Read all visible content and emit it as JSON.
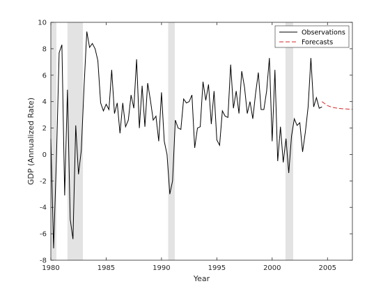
{
  "chart_data": {
    "type": "line",
    "title": "",
    "xlabel": "Year",
    "ylabel": "GDP (Annualized Rate)",
    "xlim": [
      1980,
      2007.25
    ],
    "ylim": [
      -8,
      10
    ],
    "xticks": [
      1980,
      1985,
      1990,
      1995,
      2000,
      2005
    ],
    "yticks": [
      -8,
      -6,
      -4,
      -2,
      0,
      2,
      4,
      6,
      8,
      10
    ],
    "grid": false,
    "legend_position": "top-right",
    "recessions": [
      [
        1980.0,
        1980.5
      ],
      [
        1981.5,
        1982.9
      ],
      [
        1990.6,
        1991.2
      ],
      [
        2001.2,
        2001.9
      ]
    ],
    "series": [
      {
        "name": "Observations",
        "style": "solid",
        "color": "#000000",
        "x": [
          1980.0,
          1980.25,
          1980.5,
          1980.75,
          1981.0,
          1981.25,
          1981.5,
          1981.75,
          1982.0,
          1982.25,
          1982.5,
          1982.75,
          1983.0,
          1983.25,
          1983.5,
          1983.75,
          1984.0,
          1984.25,
          1984.5,
          1984.75,
          1985.0,
          1985.25,
          1985.5,
          1985.75,
          1986.0,
          1986.25,
          1986.5,
          1986.75,
          1987.0,
          1987.25,
          1987.5,
          1987.75,
          1988.0,
          1988.25,
          1988.5,
          1988.75,
          1989.0,
          1989.25,
          1989.5,
          1989.75,
          1990.0,
          1990.25,
          1990.5,
          1990.75,
          1991.0,
          1991.25,
          1991.5,
          1991.75,
          1992.0,
          1992.25,
          1992.5,
          1992.75,
          1993.0,
          1993.25,
          1993.5,
          1993.75,
          1994.0,
          1994.25,
          1994.5,
          1994.75,
          1995.0,
          1995.25,
          1995.5,
          1995.75,
          1996.0,
          1996.25,
          1996.5,
          1996.75,
          1997.0,
          1997.25,
          1997.5,
          1997.75,
          1998.0,
          1998.25,
          1998.5,
          1998.75,
          1999.0,
          1999.25,
          1999.5,
          1999.75,
          2000.0,
          2000.25,
          2000.5,
          2000.75,
          2001.0,
          2001.25,
          2001.5,
          2001.75,
          2002.0,
          2002.25,
          2002.5,
          2002.75,
          2003.0,
          2003.25,
          2003.5,
          2003.75,
          2004.0,
          2004.25,
          2004.5
        ],
        "values": [
          1.2,
          -7.1,
          -0.5,
          7.7,
          8.3,
          -3.1,
          4.9,
          -4.9,
          -6.4,
          2.2,
          -1.5,
          0.3,
          5.1,
          9.3,
          8.1,
          8.4,
          8.0,
          7.1,
          3.9,
          3.3,
          3.8,
          3.4,
          6.4,
          3.1,
          3.9,
          1.6,
          3.9,
          2.1,
          2.6,
          4.5,
          3.5,
          7.2,
          2.0,
          5.2,
          2.1,
          5.4,
          4.1,
          2.6,
          2.9,
          1.0,
          4.7,
          1.0,
          0.0,
          -3.0,
          -2.0,
          2.6,
          2.0,
          1.9,
          4.2,
          3.9,
          4.0,
          4.5,
          0.5,
          2.0,
          2.1,
          5.5,
          4.1,
          5.3,
          2.3,
          4.8,
          1.1,
          0.7,
          3.3,
          2.9,
          2.8,
          6.8,
          3.5,
          4.8,
          3.1,
          6.3,
          5.1,
          3.1,
          4.0,
          2.7,
          4.6,
          6.2,
          3.4,
          3.4,
          4.8,
          7.3,
          1.0,
          6.4,
          -0.5,
          2.1,
          -0.6,
          1.2,
          -1.4,
          1.4,
          2.7,
          2.2,
          2.4,
          0.2,
          1.7,
          3.6,
          7.3,
          3.6,
          4.3,
          3.5,
          3.6
        ]
      },
      {
        "name": "Forecasts",
        "style": "dashed",
        "color": "#d62728",
        "x": [
          2004.5,
          2004.75,
          2005.0,
          2005.25,
          2005.5,
          2005.75,
          2006.0,
          2006.25,
          2006.5,
          2006.75,
          2007.0,
          2007.25
        ],
        "values": [
          4.0,
          3.85,
          3.7,
          3.62,
          3.56,
          3.52,
          3.49,
          3.47,
          3.45,
          3.44,
          3.43,
          3.42
        ]
      }
    ]
  },
  "legend": {
    "items": [
      {
        "label": "Observations",
        "color": "#000000",
        "dash": ""
      },
      {
        "label": "Forecasts",
        "color": "#d62728",
        "dash": "6,3"
      }
    ]
  },
  "colors": {
    "recession_shade": "#e3e3e3",
    "axis": "#262626"
  }
}
